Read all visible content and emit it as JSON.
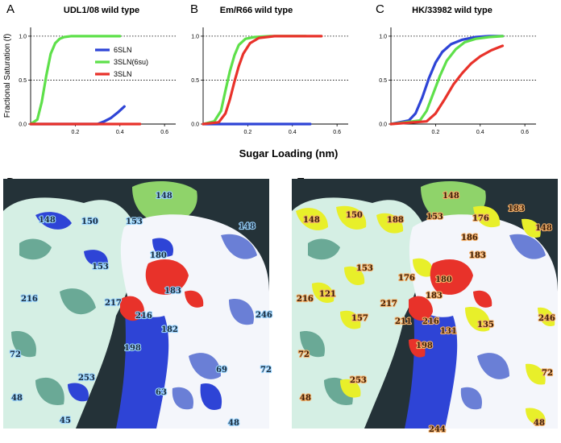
{
  "colors": {
    "6SLN": "#2e44d6",
    "3SLN(6su)": "#5ee04a",
    "3SLN": "#e8322a",
    "white_surface": "#f4f6fb",
    "blue_shadow": "#6a7fd6",
    "mint_surface": "#d5efe4",
    "mint_shadow": "#6aa996",
    "dark_cleft": "#243238",
    "yellow": "#e8ef2a",
    "green": "#8fd36a",
    "label_blue": "#9ad4ff",
    "label_orange": "#f6b26b"
  },
  "chart_data": [
    {
      "type": "line",
      "panel": "A",
      "title": "UDL1/08 wild type",
      "ylabel": "Fractional Saturation (f)",
      "xlabel": "Sugar Loading (nm)",
      "xlim": [
        0,
        0.65
      ],
      "ylim": [
        0,
        1.1
      ],
      "xticks": [
        "0.2",
        "0.4",
        "0.6"
      ],
      "yticks": [
        "0.0",
        "0.5",
        "1.0"
      ],
      "reference_lines": [
        0.5,
        1.0
      ],
      "legend": [
        "6SLN",
        "3SLN(6su)",
        "3SLN"
      ],
      "series": [
        {
          "name": "6SLN",
          "x": [
            0,
            0.3,
            0.33,
            0.36,
            0.39,
            0.42
          ],
          "y": [
            0,
            0.0,
            0.03,
            0.07,
            0.13,
            0.2
          ]
        },
        {
          "name": "3SLN(6su)",
          "x": [
            0,
            0.03,
            0.05,
            0.07,
            0.09,
            0.11,
            0.13,
            0.15,
            0.18,
            0.22,
            0.28,
            0.35,
            0.4
          ],
          "y": [
            0,
            0.05,
            0.25,
            0.55,
            0.8,
            0.92,
            0.97,
            0.99,
            1.0,
            1.0,
            1.0,
            1.0,
            1.0
          ]
        },
        {
          "name": "3SLN",
          "x": [
            0,
            0.49
          ],
          "y": [
            0,
            0
          ]
        }
      ]
    },
    {
      "type": "line",
      "panel": "B",
      "title": "Em/R66 wild type",
      "xlim": [
        0,
        0.65
      ],
      "ylim": [
        0,
        1.1
      ],
      "xticks": [
        "0.2",
        "0.4",
        "0.6"
      ],
      "yticks": [
        "0.0",
        "0.5",
        "1.0"
      ],
      "reference_lines": [
        0.5,
        1.0
      ],
      "series": [
        {
          "name": "6SLN",
          "x": [
            0,
            0.48
          ],
          "y": [
            0,
            0
          ]
        },
        {
          "name": "3SLN(6su)",
          "x": [
            0,
            0.05,
            0.08,
            0.1,
            0.12,
            0.14,
            0.16,
            0.19,
            0.23,
            0.3,
            0.38,
            0.46
          ],
          "y": [
            0,
            0.03,
            0.15,
            0.38,
            0.6,
            0.78,
            0.9,
            0.97,
            0.99,
            1.0,
            1.0,
            1.0
          ]
        },
        {
          "name": "3SLN",
          "x": [
            0,
            0.07,
            0.1,
            0.12,
            0.14,
            0.16,
            0.18,
            0.21,
            0.25,
            0.32,
            0.4,
            0.47,
            0.53
          ],
          "y": [
            0,
            0.02,
            0.12,
            0.28,
            0.48,
            0.66,
            0.8,
            0.92,
            0.98,
            1.0,
            1.0,
            1.0,
            1.0
          ]
        }
      ]
    },
    {
      "type": "line",
      "panel": "C",
      "title": "HK/33982 wild type",
      "xlim": [
        0,
        0.65
      ],
      "ylim": [
        0,
        1.1
      ],
      "xticks": [
        "0.2",
        "0.4",
        "0.6"
      ],
      "yticks": [
        "0.0",
        "0.5",
        "1.0"
      ],
      "reference_lines": [
        0.5,
        1.0
      ],
      "series": [
        {
          "name": "6SLN",
          "x": [
            0,
            0.08,
            0.11,
            0.14,
            0.17,
            0.2,
            0.23,
            0.27,
            0.32,
            0.38,
            0.44,
            0.5
          ],
          "y": [
            0,
            0.04,
            0.12,
            0.3,
            0.52,
            0.7,
            0.82,
            0.91,
            0.96,
            0.99,
            1.0,
            1.0
          ]
        },
        {
          "name": "3SLN(6su)",
          "x": [
            0,
            0.13,
            0.16,
            0.19,
            0.22,
            0.25,
            0.29,
            0.33,
            0.38,
            0.44,
            0.5
          ],
          "y": [
            0,
            0.04,
            0.15,
            0.35,
            0.55,
            0.72,
            0.85,
            0.93,
            0.97,
            0.99,
            1.0
          ]
        },
        {
          "name": "3SLN",
          "x": [
            0,
            0.16,
            0.2,
            0.24,
            0.28,
            0.32,
            0.36,
            0.4,
            0.45,
            0.5
          ],
          "y": [
            0,
            0.03,
            0.12,
            0.28,
            0.45,
            0.58,
            0.69,
            0.77,
            0.84,
            0.89
          ]
        }
      ]
    }
  ],
  "structures": {
    "D": {
      "letter": "D",
      "labels": [
        {
          "t": "148",
          "x": 44,
          "y": 54
        },
        {
          "t": "150",
          "x": 97,
          "y": 56
        },
        {
          "t": "148",
          "x": 189,
          "y": 24
        },
        {
          "t": "153",
          "x": 152,
          "y": 56
        },
        {
          "t": "148",
          "x": 292,
          "y": 62
        },
        {
          "t": "153",
          "x": 110,
          "y": 112
        },
        {
          "t": "180",
          "x": 182,
          "y": 98
        },
        {
          "t": "183",
          "x": 200,
          "y": 142
        },
        {
          "t": "216",
          "x": 22,
          "y": 152
        },
        {
          "t": "217",
          "x": 126,
          "y": 157
        },
        {
          "t": "216",
          "x": 164,
          "y": 173
        },
        {
          "t": "182",
          "x": 196,
          "y": 190
        },
        {
          "t": "246",
          "x": 313,
          "y": 172
        },
        {
          "t": "198",
          "x": 150,
          "y": 213
        },
        {
          "t": "72",
          "x": 8,
          "y": 221
        },
        {
          "t": "72",
          "x": 319,
          "y": 240
        },
        {
          "t": "69",
          "x": 264,
          "y": 240
        },
        {
          "t": "48",
          "x": 10,
          "y": 275
        },
        {
          "t": "253",
          "x": 93,
          "y": 250
        },
        {
          "t": "63",
          "x": 189,
          "y": 268
        },
        {
          "t": "45",
          "x": 70,
          "y": 303
        },
        {
          "t": "48",
          "x": 279,
          "y": 306
        }
      ]
    },
    "E": {
      "letter": "E",
      "labels": [
        {
          "t": "148",
          "x": 14,
          "y": 54
        },
        {
          "t": "150",
          "x": 67,
          "y": 48
        },
        {
          "t": "188",
          "x": 118,
          "y": 54
        },
        {
          "t": "148",
          "x": 187,
          "y": 24
        },
        {
          "t": "153",
          "x": 167,
          "y": 50
        },
        {
          "t": "176",
          "x": 224,
          "y": 52
        },
        {
          "t": "183",
          "x": 268,
          "y": 40
        },
        {
          "t": "148",
          "x": 302,
          "y": 64
        },
        {
          "t": "186",
          "x": 210,
          "y": 76
        },
        {
          "t": "183",
          "x": 220,
          "y": 98
        },
        {
          "t": "153",
          "x": 80,
          "y": 114
        },
        {
          "t": "176",
          "x": 132,
          "y": 126
        },
        {
          "t": "180",
          "x": 178,
          "y": 128
        },
        {
          "t": "121",
          "x": 34,
          "y": 146
        },
        {
          "t": "183",
          "x": 166,
          "y": 148
        },
        {
          "t": "216",
          "x": 6,
          "y": 152
        },
        {
          "t": "217",
          "x": 110,
          "y": 158
        },
        {
          "t": "157",
          "x": 74,
          "y": 176
        },
        {
          "t": "211",
          "x": 128,
          "y": 180
        },
        {
          "t": "216",
          "x": 162,
          "y": 180
        },
        {
          "t": "131",
          "x": 184,
          "y": 192
        },
        {
          "t": "135",
          "x": 230,
          "y": 184
        },
        {
          "t": "246",
          "x": 306,
          "y": 176
        },
        {
          "t": "198",
          "x": 154,
          "y": 210
        },
        {
          "t": "72",
          "x": 8,
          "y": 221
        },
        {
          "t": "72",
          "x": 310,
          "y": 244
        },
        {
          "t": "48",
          "x": 10,
          "y": 275
        },
        {
          "t": "253",
          "x": 72,
          "y": 253
        },
        {
          "t": "48",
          "x": 300,
          "y": 306
        },
        {
          "t": "244",
          "x": 170,
          "y": 314
        }
      ]
    }
  }
}
